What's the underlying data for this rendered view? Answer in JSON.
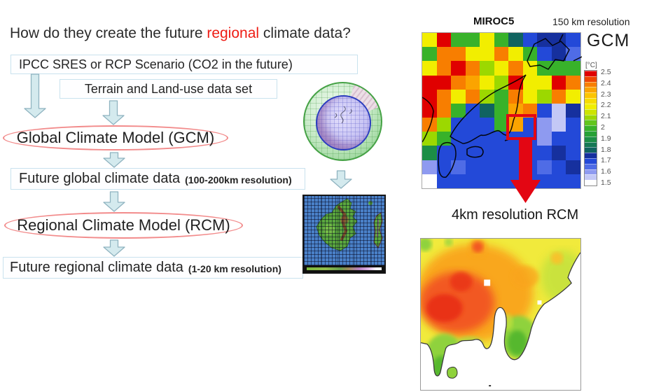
{
  "title": {
    "pre": "How do they create the future ",
    "em": "regional",
    "post": " climate data?"
  },
  "flow": {
    "scenario_box": "IPCC SRES or RCP Scenario (CO2 in the future)",
    "terrain_box": "Terrain and Land-use data set",
    "gcm_ellipse": "Global Climate Model (GCM)",
    "global_data_box": "Future global climate data",
    "global_data_note": "(100-200km resolution)",
    "rcm_ellipse": "Regional Climate Model (RCM)",
    "regional_data_box": "Future regional climate data",
    "regional_data_note": "(1-20 km resolution)"
  },
  "gcm_panel": {
    "model": "MIROC5",
    "resolution": "150 km resolution",
    "label": "GCM",
    "unit": "[°C]",
    "legend": {
      "labels": [
        "2.5",
        "2.4",
        "2.3",
        "2.2",
        "2.1",
        "2",
        "1.9",
        "1.8",
        "1.7",
        "1.6",
        "1.5"
      ],
      "colors": [
        "#e00000",
        "#ef4600",
        "#f87e00",
        "#fba400",
        "#fcc400",
        "#f7dc00",
        "#f1ee00",
        "#cde400",
        "#9cd800",
        "#62c51e",
        "#38b22a",
        "#27a136",
        "#1c8e46",
        "#157854",
        "#106360",
        "#16309e",
        "#2349d8",
        "#4f6ce6",
        "#8e9af0",
        "#c3c8f6",
        "#ffffff"
      ]
    },
    "grid_colors": [
      [
        "#f2ee00",
        "#e00000",
        "#38b22a",
        "#38b22a",
        "#f2ee00",
        "#38b22a",
        "#106360",
        "#2349d8",
        "#16309e",
        "#16309e",
        "#2349d8"
      ],
      [
        "#38b22a",
        "#f87e00",
        "#f87e00",
        "#f2ee00",
        "#f2ee00",
        "#f87e00",
        "#f2ee00",
        "#38b22a",
        "#2349d8",
        "#16309e",
        "#4f6ce6"
      ],
      [
        "#f2ee00",
        "#f87e00",
        "#e00000",
        "#f87e00",
        "#9cd800",
        "#f2ee00",
        "#f87e00",
        "#f2ee00",
        "#38b22a",
        "#38b22a",
        "#38b22a"
      ],
      [
        "#e00000",
        "#e00000",
        "#f87e00",
        "#fba400",
        "#f2ee00",
        "#9cd800",
        "#e00000",
        "#f2ee00",
        "#f2ee00",
        "#e00000",
        "#f87e00"
      ],
      [
        "#e00000",
        "#f87e00",
        "#f2ee00",
        "#f87e00",
        "#9cd800",
        "#38b22a",
        "#f87e00",
        "#f2ee00",
        "#9cd800",
        "#f87e00",
        "#f2ee00"
      ],
      [
        "#e00000",
        "#f87e00",
        "#38b22a",
        "#2349d8",
        "#106360",
        "#38b22a",
        "#fba400",
        "#f87e00",
        "#2349d8",
        "#c3c8f6",
        "#16309e"
      ],
      [
        "#f87e00",
        "#9cd800",
        "#2349d8",
        "#2349d8",
        "#2349d8",
        "#38b22a",
        "#fba400",
        "#2349d8",
        "#8e9af0",
        "#c3c8f6",
        "#2349d8"
      ],
      [
        "#9cd800",
        "#38b22a",
        "#2349d8",
        "#2349d8",
        "#2349d8",
        "#2349d8",
        "#2349d8",
        "#2349d8",
        "#8e9af0",
        "#2349d8",
        "#2349d8"
      ],
      [
        "#1c8e46",
        "#2349d8",
        "#2349d8",
        "#2349d8",
        "#2349d8",
        "#2349d8",
        "#2349d8",
        "#2349d8",
        "#2349d8",
        "#16309e",
        "#2349d8"
      ],
      [
        "#8e9af0",
        "#2349d8",
        "#4f6ce6",
        "#2349d8",
        "#2349d8",
        "#2349d8",
        "#2349d8",
        "#2349d8",
        "#4f6ce6",
        "#2349d8",
        "#16309e"
      ],
      [
        "#ffffff",
        "#2349d8",
        "#2349d8",
        "#2349d8",
        "#2349d8",
        "#2349d8",
        "#2349d8",
        "#2349d8",
        "#2349d8",
        "#2349d8",
        "#2349d8"
      ]
    ]
  },
  "rcm_panel": {
    "caption": "4km resolution RCM"
  }
}
